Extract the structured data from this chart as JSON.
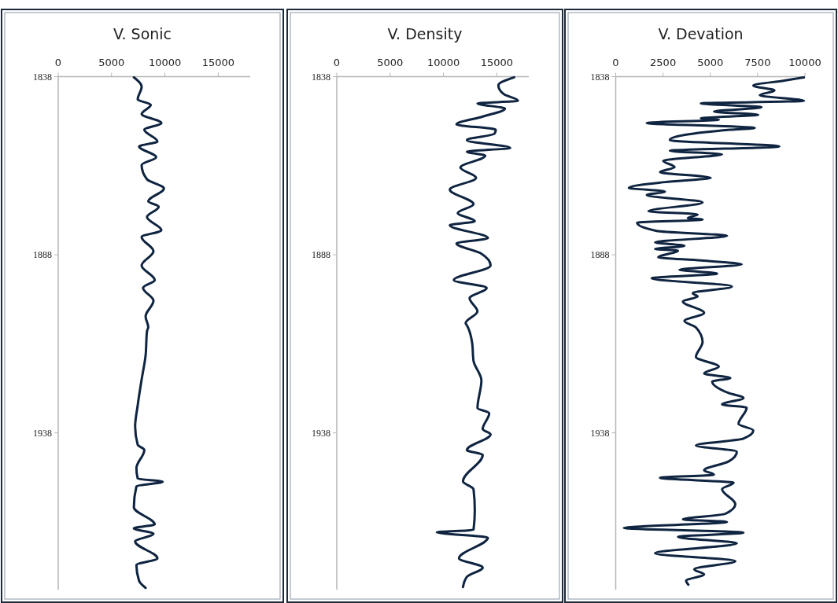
{
  "chart_data": [
    {
      "type": "line",
      "title": "V. Sonic",
      "xlim": [
        0,
        18000
      ],
      "xticks": [
        0,
        5000,
        10000,
        15000
      ],
      "ylim": [
        1982,
        1838
      ],
      "yticks": [
        1838,
        1888,
        1938
      ],
      "series": [
        {
          "color": "#0f2440",
          "x": [
            7090,
            7820,
            7450,
            8680,
            7820,
            9670,
            8070,
            9300,
            7580,
            9180,
            7820,
            8320,
            9910,
            8440,
            9420,
            8320,
            9670,
            7820,
            8930,
            7820,
            9050,
            7950,
            8930,
            8190,
            8440,
            8320,
            8190,
            7820,
            7450,
            7210,
            7450,
            8070,
            7330,
            7450,
            9790,
            7330,
            7090,
            9050,
            7090,
            8930,
            7210,
            9300,
            7330,
            7580,
            8190
          ],
          "values": [
            1838.2,
            1840.8,
            1844.4,
            1845.9,
            1848.5,
            1851,
            1852.9,
            1856.2,
            1857.6,
            1860.6,
            1862.8,
            1866.8,
            1869.4,
            1873,
            1874.5,
            1877.4,
            1881.1,
            1883,
            1887,
            1891,
            1895.1,
            1897.3,
            1900.9,
            1905.3,
            1908.3,
            1909.5,
            1916.3,
            1923,
            1930.3,
            1936.2,
            1941.3,
            1942.8,
            1947.9,
            1950.8,
            1951.7,
            1953,
            1958.9,
            1963.7,
            1964.8,
            1966.3,
            1968.5,
            1973.2,
            1975.1,
            1979.5,
            1981.5
          ]
        }
      ]
    },
    {
      "type": "line",
      "title": "V. Density",
      "xlim": [
        0,
        18000
      ],
      "xticks": [
        0,
        5000,
        10000,
        15000
      ],
      "ylim": [
        1982,
        1838
      ],
      "yticks": [
        1838,
        1888,
        1938
      ],
      "series": [
        {
          "color": "#0f2440",
          "x": [
            16630,
            15150,
            15650,
            17000,
            13190,
            15770,
            13680,
            11220,
            14910,
            14790,
            12200,
            16260,
            12200,
            13920,
            11590,
            13060,
            10600,
            12820,
            11340,
            12940,
            10600,
            14170,
            11220,
            13560,
            14420,
            10970,
            14050,
            12450,
            13190,
            12080,
            12200,
            12690,
            12820,
            13560,
            13190,
            14290,
            13680,
            14420,
            12200,
            13680,
            11830,
            12820,
            12940,
            12820,
            9370,
            14170,
            11460,
            13680,
            12200,
            11830
          ],
          "values": [
            1838.2,
            1840.4,
            1842.9,
            1844.8,
            1845.5,
            1847,
            1849.2,
            1851.4,
            1852.9,
            1854,
            1855.8,
            1858,
            1859.1,
            1860.2,
            1863.5,
            1866.4,
            1869.7,
            1873.8,
            1876.3,
            1878.6,
            1879.7,
            1883.3,
            1884.8,
            1887.7,
            1891,
            1895.1,
            1897.3,
            1900.2,
            1903.9,
            1907.2,
            1907.8,
            1912.7,
            1917.8,
            1923.3,
            1931,
            1932.5,
            1936.9,
            1938.4,
            1942.8,
            1944.2,
            1951.6,
            1953.8,
            1959.7,
            1965.2,
            1965.9,
            1967.4,
            1973.2,
            1975.8,
            1978.4,
            1981.3
          ]
        }
      ]
    },
    {
      "type": "line",
      "title": "V. Devation",
      "xlim": [
        0,
        10000
      ],
      "xticks": [
        0,
        2500,
        5000,
        7500,
        10000
      ],
      "ylim": [
        1982,
        1838
      ],
      "yticks": [
        1838,
        1888,
        1938
      ],
      "series": [
        {
          "color": "#0f2440",
          "x": [
            9950,
            8910,
            7270,
            8390,
            7610,
            9950,
            4500,
            7700,
            5190,
            7530,
            4500,
            5450,
            1640,
            7350,
            6060,
            2860,
            8650,
            2860,
            5620,
            2510,
            3110,
            2340,
            5020,
            2600,
            690,
            2600,
            1640,
            4590,
            1730,
            4330,
            3810,
            4590,
            1130,
            2160,
            5880,
            2080,
            3630,
            2080,
            3290,
            2250,
            4500,
            6660,
            3370,
            5360,
            1900,
            6140,
            4070,
            4330,
            3550,
            4670,
            3630,
            4240,
            4590,
            4240,
            5450,
            4670,
            6060,
            5100,
            5970,
            6750,
            5620,
            6920,
            6490,
            7270,
            6750,
            4240,
            6400,
            5970,
            4670,
            5190,
            2340,
            6230,
            5620,
            6320,
            5800,
            3550,
            5880,
            430,
            6750,
            3290,
            6400,
            2080,
            6320,
            4150,
            4670,
            3720,
            3840
          ],
          "values": [
            1838.2,
            1839.1,
            1840.5,
            1841.9,
            1843.2,
            1844.8,
            1845.5,
            1846.6,
            1847.8,
            1848.7,
            1849.7,
            1850.1,
            1851,
            1852.4,
            1852.9,
            1855.8,
            1857.6,
            1858.8,
            1859.8,
            1861.6,
            1863.4,
            1864.8,
            1866.4,
            1867.6,
            1869.2,
            1870.3,
            1871.2,
            1873.3,
            1875.8,
            1876.7,
            1877.7,
            1878.1,
            1879,
            1881.3,
            1882.7,
            1884.5,
            1885.5,
            1886.4,
            1886.8,
            1888.7,
            1889.6,
            1890.7,
            1892.2,
            1893.3,
            1894.6,
            1896.9,
            1898.8,
            1899.7,
            1901.1,
            1904.3,
            1906.6,
            1908.4,
            1912.5,
            1916.7,
            1919.4,
            1921.3,
            1922.6,
            1923.6,
            1926.8,
            1928.2,
            1930,
            1930.9,
            1935.5,
            1937.3,
            1939.6,
            1941.5,
            1943.3,
            1946,
            1948.5,
            1949.7,
            1950.6,
            1952,
            1953.8,
            1958,
            1960.7,
            1962.3,
            1963,
            1964.7,
            1966,
            1967.2,
            1969,
            1971.8,
            1974,
            1976.3,
            1977.7,
            1979.5,
            1980.6
          ]
        }
      ]
    }
  ]
}
